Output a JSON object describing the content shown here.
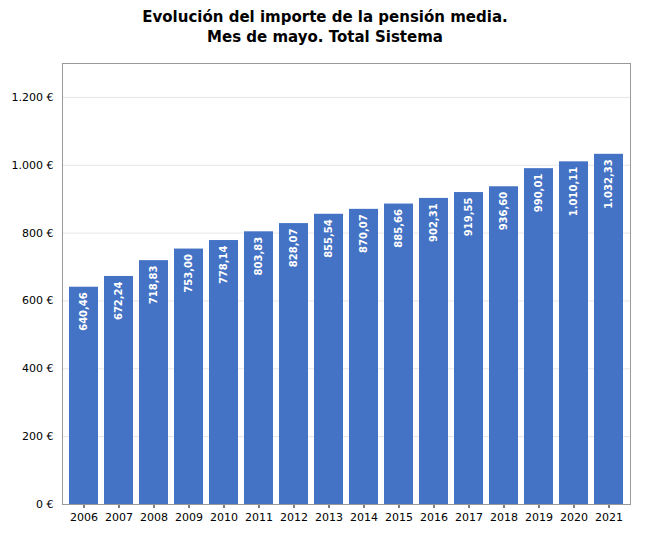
{
  "chart_data": {
    "type": "bar",
    "title": "Evolución del importe de la pensión media.\nMes de mayo. Total Sistema",
    "categories": [
      "2006",
      "2007",
      "2008",
      "2009",
      "2010",
      "2011",
      "2012",
      "2013",
      "2014",
      "2015",
      "2016",
      "2017",
      "2018",
      "2019",
      "2020",
      "2021"
    ],
    "values": [
      640.46,
      672.24,
      718.83,
      753.0,
      778.14,
      803.83,
      828.07,
      855.54,
      870.07,
      885.66,
      902.31,
      919.55,
      936.6,
      990.01,
      1010.11,
      1032.33
    ],
    "value_labels": [
      "640,46",
      "672,24",
      "718,83",
      "753,00",
      "778,14",
      "803,83",
      "828,07",
      "855,54",
      "870,07",
      "885,66",
      "902,31",
      "919,55",
      "936,60",
      "990,01",
      "1.010,11",
      "1.032,33"
    ],
    "data_labels": true,
    "color": "#4472C4",
    "ylim": [
      0,
      1300
    ],
    "yticks": [
      {
        "value": 0,
        "label": "0 €"
      },
      {
        "value": 200,
        "label": "200 €"
      },
      {
        "value": 400,
        "label": "400 €"
      },
      {
        "value": 600,
        "label": "600 €"
      },
      {
        "value": 800,
        "label": "800 €"
      },
      {
        "value": 1000,
        "label": "1.000 €"
      },
      {
        "value": 1200,
        "label": "1.200 €"
      }
    ],
    "grid": true
  }
}
